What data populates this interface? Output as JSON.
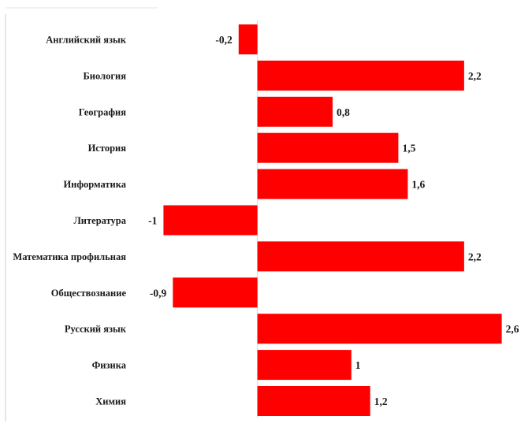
{
  "chart_data": {
    "type": "bar",
    "orientation": "horizontal",
    "categories": [
      "Английский язык",
      "Биология",
      "География",
      "История",
      "Информатика",
      "Литература",
      "Математика профильная",
      "Обществознание",
      "Русский язык",
      "Физика",
      "Химия"
    ],
    "values": [
      -0.2,
      2.2,
      0.8,
      1.5,
      1.6,
      -1,
      2.2,
      -0.9,
      2.6,
      1,
      1.2
    ],
    "value_labels": [
      "-0,2",
      "2,2",
      "0,8",
      "1,5",
      "1,6",
      "-1",
      "2,2",
      "-0,9",
      "2,6",
      "1",
      "1,2"
    ],
    "xlim": [
      -1.02,
      2.62
    ],
    "grid": false,
    "legend": "none",
    "bar_color": "#ff0000",
    "label_color": "#1a1a1a"
  }
}
